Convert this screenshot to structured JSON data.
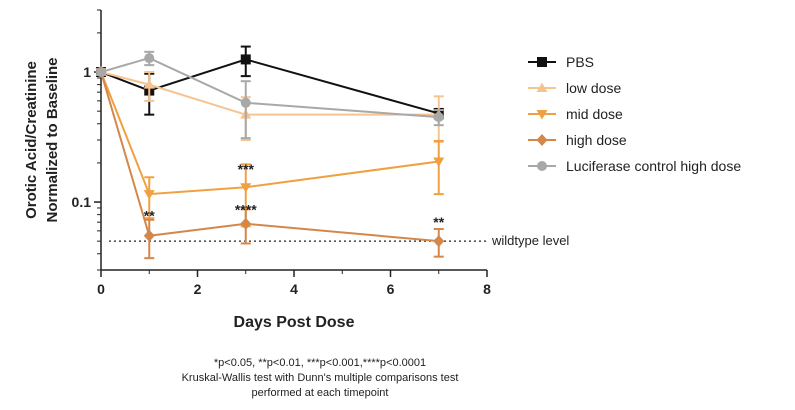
{
  "chart_data": {
    "type": "line",
    "title": "",
    "xlabel": "Days Post Dose",
    "ylabel": [
      "Orotic Acid/Creatinine",
      "Normalized to Baseline"
    ],
    "xlim": [
      0,
      8
    ],
    "ylim": [
      0.03,
      3
    ],
    "yscale": "log",
    "x_ticks": [
      0,
      2,
      4,
      6,
      8
    ],
    "y_ticks": [
      {
        "value": 1,
        "label": "1"
      },
      {
        "value": 0.1,
        "label": "0.1"
      }
    ],
    "grid": false,
    "legend_position": "right",
    "x": [
      0,
      1,
      3,
      7
    ],
    "series": [
      {
        "name": "PBS",
        "color": "#111111",
        "marker": "square",
        "values": [
          1.0,
          0.72,
          1.25,
          0.48
        ],
        "err": [
          0.05,
          0.25,
          0.32,
          0.04
        ]
      },
      {
        "name": "low dose",
        "color": "#f6c48f",
        "marker": "triangle-up",
        "values": [
          1.0,
          0.8,
          0.47,
          0.47
        ],
        "err": [
          0.05,
          0.2,
          0.17,
          0.18
        ]
      },
      {
        "name": "mid dose",
        "color": "#f0a040",
        "marker": "triangle-down",
        "values": [
          1.0,
          0.115,
          0.13,
          0.205
        ],
        "err": [
          0.05,
          0.04,
          0.065,
          0.09
        ]
      },
      {
        "name": "high dose",
        "color": "#d4874a",
        "marker": "diamond",
        "values": [
          1.0,
          0.055,
          0.068,
          0.05
        ],
        "err": [
          0.05,
          0.018,
          0.02,
          0.012
        ]
      },
      {
        "name": "Luciferase control high dose",
        "color": "#a8a8a8",
        "marker": "circle",
        "values": [
          1.0,
          1.28,
          0.58,
          0.45
        ],
        "err": [
          0.05,
          0.15,
          0.27,
          0.06
        ]
      }
    ],
    "reference_line": {
      "value": 0.05,
      "label": "wildtype level"
    },
    "annotations": [
      {
        "text": "**",
        "x": 1,
        "y": 0.072
      },
      {
        "text": "***",
        "x": 3,
        "y": 0.165
      },
      {
        "text": "****",
        "x": 3,
        "y": 0.08
      },
      {
        "text": "**",
        "x": 7,
        "y": 0.064
      }
    ]
  },
  "footnote": {
    "line1": "*p<0.05, **p<0.01, ***p<0.001,****p<0.0001",
    "line2": "Kruskal-Wallis test with Dunn's multiple comparisons test",
    "line3": "performed at each timepoint"
  }
}
